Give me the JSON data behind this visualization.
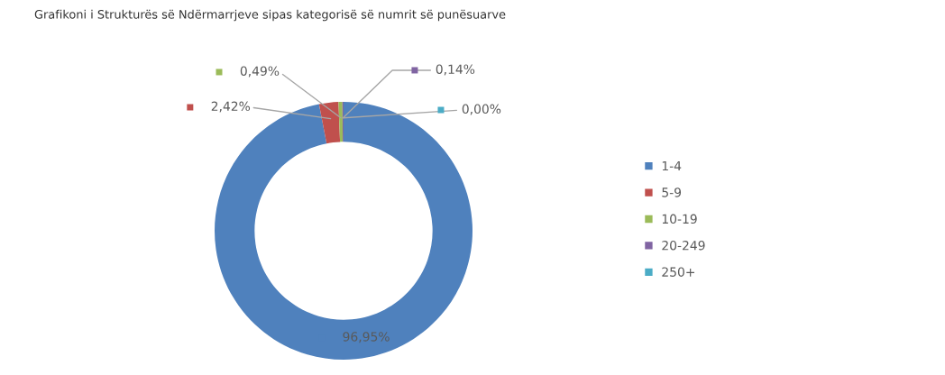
{
  "chart_data": {
    "type": "donut",
    "title": "Grafikoni i Strukturës së Ndërmarrjeve sipas kategorisë së numrit së punësuarve",
    "categories": [
      "1-4",
      "5-9",
      "10-19",
      "20-249",
      "250+"
    ],
    "values": [
      96.95,
      2.42,
      0.49,
      0.14,
      0.0
    ],
    "colors": [
      "#4f81bd",
      "#c0504d",
      "#9bbb59",
      "#8064a2",
      "#4bacc6"
    ],
    "value_labels": [
      "96,95%",
      "2,42%",
      "0,49%",
      "0,14%",
      "0,00%"
    ],
    "legend": "right"
  }
}
